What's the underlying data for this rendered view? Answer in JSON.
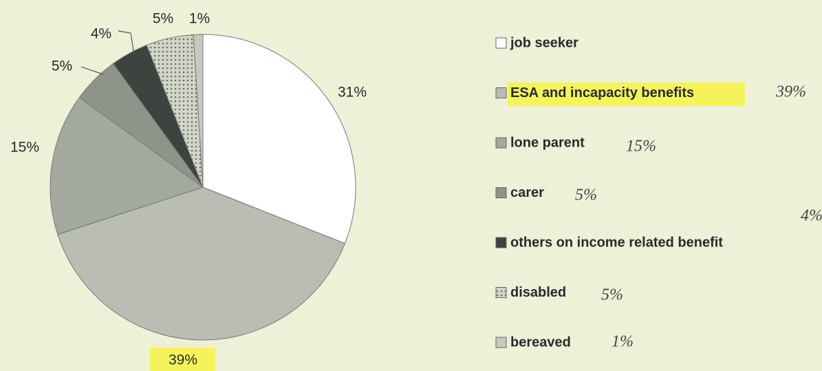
{
  "chart_data": {
    "type": "pie",
    "categories": [
      "job seeker",
      "ESA and incapacity benefits",
      "lone parent",
      "carer",
      "others on income related benefit",
      "disabled",
      "bereaved"
    ],
    "values": [
      31,
      39,
      15,
      5,
      4,
      5,
      1
    ],
    "value_labels": [
      "31%",
      "39%",
      "15%",
      "5%",
      "4%",
      "5%",
      "1%"
    ],
    "colors": [
      "#ffffff",
      "#b9bdb3",
      "#a4a99f",
      "#8f948a",
      "#3d4440",
      "#d2d6c9",
      "#c6cabd"
    ],
    "legend": "right",
    "annotations": [
      "39%",
      "15%",
      "5%",
      "4%",
      "5%",
      "1%"
    ]
  }
}
